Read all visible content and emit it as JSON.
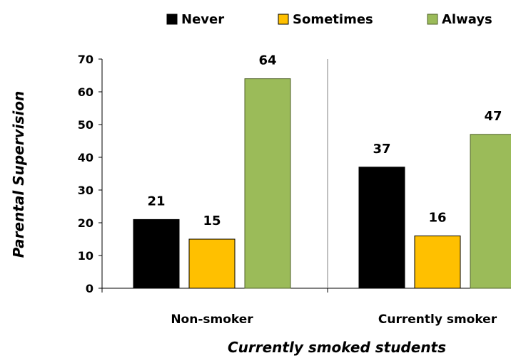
{
  "chart_data": {
    "type": "bar",
    "title": "",
    "xlabel": "Currently smoked students",
    "ylabel": "Parental Supervision",
    "categories": [
      "Non-smoker",
      "Currently smoker"
    ],
    "series": [
      {
        "name": "Never",
        "values": [
          21,
          37
        ],
        "color": "#000000"
      },
      {
        "name": "Sometimes",
        "values": [
          15,
          16
        ],
        "color": "#FFC000"
      },
      {
        "name": "Always",
        "values": [
          64,
          47
        ],
        "color": "#9BBB59"
      }
    ],
    "ylim": [
      0,
      70
    ],
    "yticks": [
      0,
      10,
      20,
      30,
      40,
      50,
      60,
      70
    ],
    "grid": false,
    "legend_position": "top",
    "data_labels": true
  }
}
